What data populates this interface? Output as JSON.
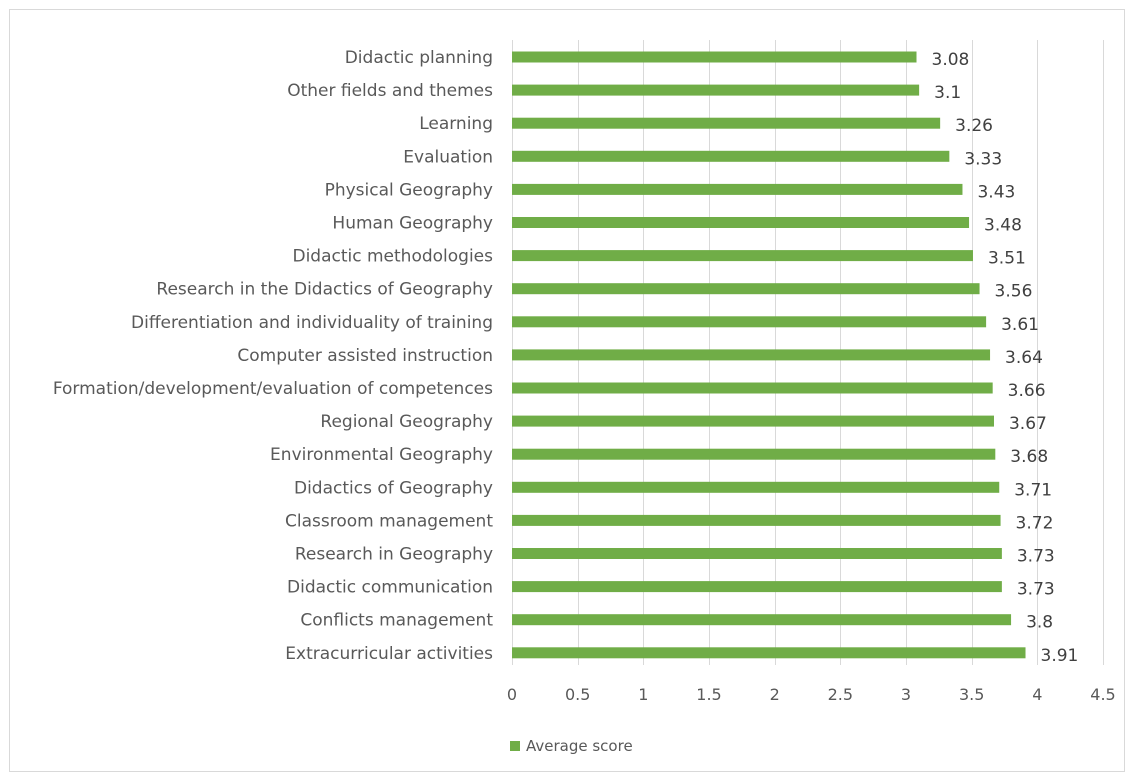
{
  "chart_data": {
    "type": "bar",
    "orientation": "horizontal",
    "title": "",
    "xlabel": "",
    "ylabel": "",
    "categories": [
      "Didactic planning",
      "Other fields and themes",
      "Learning",
      "Evaluation",
      "Physical Geography",
      "Human Geography",
      "Didactic methodologies",
      "Research in the Didactics of Geography",
      "Differentiation and individuality of training",
      "Computer assisted instruction",
      "Formation/development/evaluation of competences",
      "Regional Geography",
      "Environmental Geography",
      "Didactics of Geography",
      "Classroom management",
      "Research in Geography",
      "Didactic communication",
      "Conflicts management",
      "Extracurricular activities"
    ],
    "series": [
      {
        "name": "Average score",
        "color": "#70ad47",
        "values": [
          3.08,
          3.1,
          3.26,
          3.33,
          3.43,
          3.48,
          3.51,
          3.56,
          3.61,
          3.64,
          3.66,
          3.67,
          3.68,
          3.71,
          3.72,
          3.73,
          3.73,
          3.8,
          3.91
        ]
      }
    ],
    "data_labels": [
      "3.08",
      "3.1",
      "3.26",
      "3.33",
      "3.43",
      "3.48",
      "3.51",
      "3.56",
      "3.61",
      "3.64",
      "3.66",
      "3.67",
      "3.68",
      "3.71",
      "3.72",
      "3.73",
      "3.73",
      "3.8",
      "3.91"
    ],
    "xlim": [
      0,
      4.5
    ],
    "xticks": [
      0,
      0.5,
      1,
      1.5,
      2,
      2.5,
      3,
      3.5,
      4,
      4.5
    ],
    "xtick_labels": [
      "0",
      "0.5",
      "1",
      "1.5",
      "2",
      "2.5",
      "3",
      "3.5",
      "4",
      "4.5"
    ],
    "grid": "vertical",
    "gridline_color": "#d9d9d9",
    "legend_position": "bottom-left"
  }
}
